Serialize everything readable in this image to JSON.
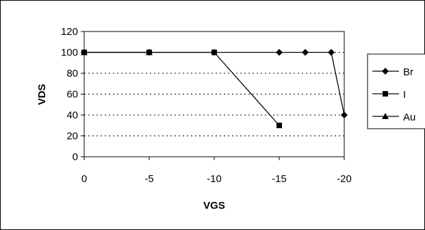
{
  "chart_data": {
    "type": "line",
    "xlabel": "VGS",
    "ylabel": "VDS",
    "x_ticks": [
      "0",
      "-5",
      "-10",
      "-15",
      "-20"
    ],
    "y_ticks": [
      "0",
      "20",
      "40",
      "60",
      "80",
      "100",
      "120"
    ],
    "xlim": [
      0,
      -20
    ],
    "ylim": [
      0,
      120
    ],
    "grid": "horizontal-dotted",
    "legend_position": "right",
    "series": [
      {
        "name": "Br",
        "marker": "diamond",
        "x": [
          0,
          -5,
          -10,
          -15,
          -17,
          -19,
          -20
        ],
        "y": [
          100,
          100,
          100,
          100,
          100,
          100,
          40
        ]
      },
      {
        "name": "I",
        "marker": "square",
        "x": [
          0,
          -5,
          -10,
          -15
        ],
        "y": [
          100,
          100,
          100,
          30
        ]
      },
      {
        "name": "Au",
        "marker": "triangle",
        "x": [
          0,
          -5
        ],
        "y": [
          100,
          100
        ]
      }
    ]
  }
}
